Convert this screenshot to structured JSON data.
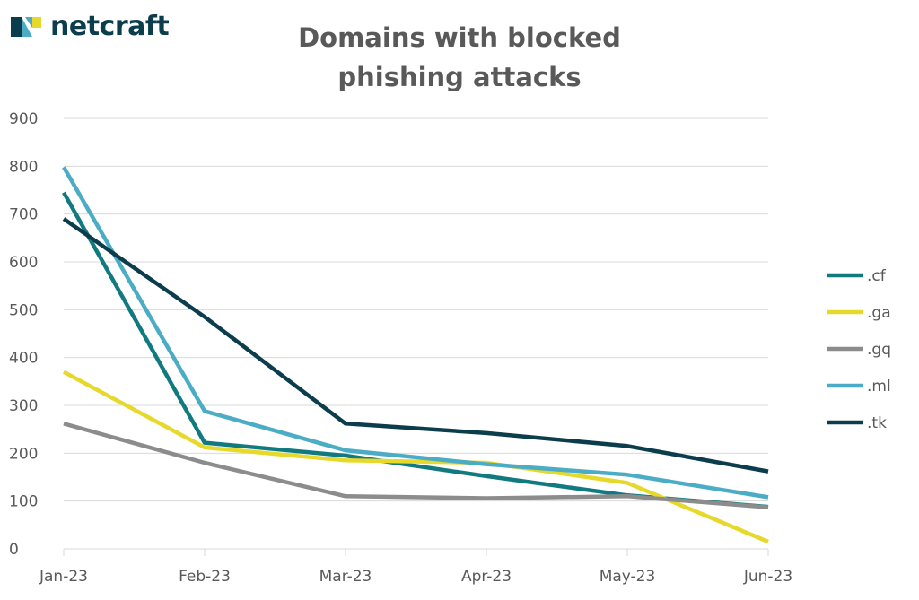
{
  "brand": {
    "name": "netcraft",
    "colors": {
      "primary": "#0b3d4c",
      "accent_teal": "#4bacc6",
      "accent_yellow": "#e7d92b"
    }
  },
  "chart_data": {
    "type": "line",
    "title_lines": [
      "Domains with blocked",
      "phishing attacks"
    ],
    "categories": [
      "Jan-23",
      "Feb-23",
      "Mar-23",
      "Apr-23",
      "May-23",
      "Jun-23"
    ],
    "y_ticks": [
      "0",
      "100",
      "200",
      "300",
      "400",
      "500",
      "600",
      "700",
      "800",
      "900"
    ],
    "ylim": [
      0,
      900
    ],
    "grid": true,
    "legend_position": "right",
    "series": [
      {
        "name": ".cf",
        "color": "#117a80",
        "values": [
          745,
          222,
          195,
          152,
          112,
          88
        ]
      },
      {
        "name": ".ga",
        "color": "#e7d92b",
        "values": [
          370,
          212,
          185,
          180,
          138,
          15
        ]
      },
      {
        "name": ".gq",
        "color": "#8c8c8c",
        "values": [
          262,
          180,
          110,
          106,
          110,
          87
        ]
      },
      {
        "name": ".ml",
        "color": "#4bacc6",
        "values": [
          798,
          288,
          206,
          177,
          155,
          108
        ]
      },
      {
        "name": ".tk",
        "color": "#0b3d4c",
        "values": [
          690,
          485,
          262,
          242,
          215,
          162
        ]
      }
    ]
  }
}
